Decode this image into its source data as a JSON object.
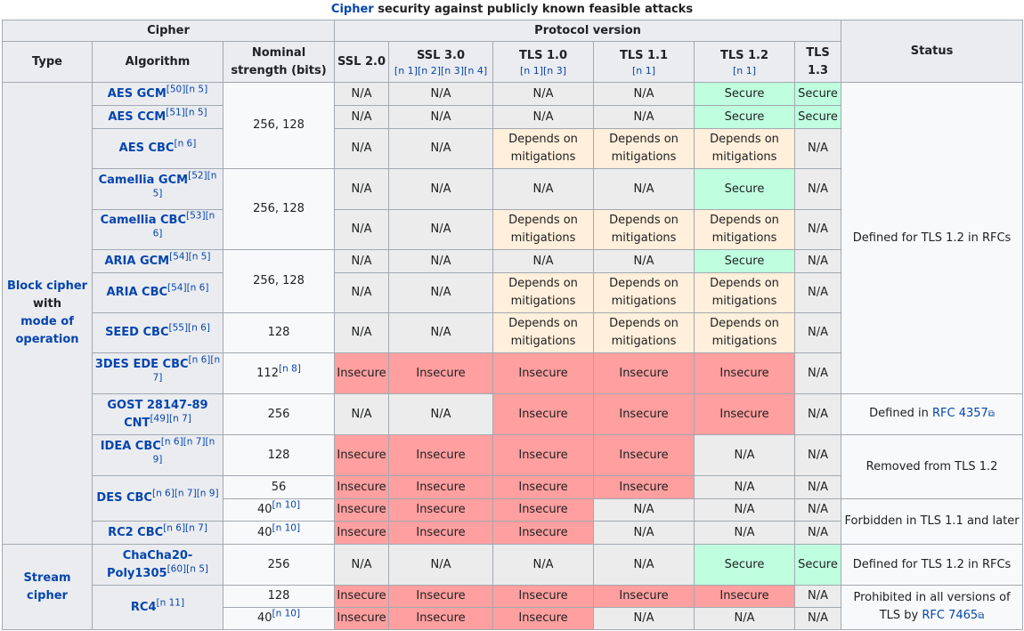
{
  "caption": {
    "link": "Cipher",
    "text": " security against publicly known feasible attacks"
  },
  "header": {
    "cipher": "Cipher",
    "protocol_version": "Protocol version",
    "type": "Type",
    "algorithm": "Algorithm",
    "strength": "Nominal strength (bits)",
    "status": "Status",
    "ssl20": "SSL 2.0",
    "ssl30": "SSL 3.0",
    "ssl30_refs": "[n 1][n 2][n 3][n 4]",
    "tls10": "TLS 1.0",
    "tls10_refs": "[n 1][n 3]",
    "tls11": "TLS 1.1",
    "tls11_refs": "[n 1]",
    "tls12": "TLS 1.2",
    "tls12_refs": "[n 1]",
    "tls13": "TLS 1.3"
  },
  "types": {
    "block_1": "Block cipher",
    "block_2": "with",
    "block_3": "mode of operation",
    "stream": "Stream cipher"
  },
  "algorithms": {
    "aes_gcm": "AES GCM",
    "aes_gcm_ref": "[50][n 5]",
    "aes_ccm": "AES CCM",
    "aes_ccm_ref": "[51][n 5]",
    "aes_cbc": "AES CBC",
    "aes_cbc_ref": "[n 6]",
    "cam_gcm": "Camellia GCM",
    "cam_gcm_ref": "[52][n 5]",
    "cam_cbc": "Camellia CBC",
    "cam_cbc_ref": "[53][n 6]",
    "aria_gcm": "ARIA GCM",
    "aria_gcm_ref": "[54][n 5]",
    "aria_cbc": "ARIA CBC",
    "aria_cbc_ref": "[54][n 6]",
    "seed_cbc": "SEED CBC",
    "seed_cbc_ref": "[55][n 6]",
    "des3": "3DES EDE CBC",
    "des3_ref": "[n 6][n 7]",
    "gost": "GOST 28147-89 CNT",
    "gost_ref": "[49][n 7]",
    "idea": "IDEA CBC",
    "idea_ref": "[n 6][n 7][n 9]",
    "des": "DES CBC",
    "des_ref": "[n 6][n 7][n 9]",
    "rc2": "RC2 CBC",
    "rc2_ref": "[n 6][n 7]",
    "chacha": "ChaCha20-Poly1305",
    "chacha_ref": "[60][n 5]",
    "rc4": "RC4",
    "rc4_ref": "[n 11]"
  },
  "strengths": {
    "aes": "256, 128",
    "cam": "256, 128",
    "aria": "256, 128",
    "seed": "128",
    "des3": "112",
    "des3_ref": "[n 8]",
    "gost": "256",
    "idea": "128",
    "des56": "56",
    "des40": "40",
    "des40_ref": "[n 10]",
    "rc2": "40",
    "rc2_ref": "[n 10]",
    "chacha": "256",
    "rc4_128": "128",
    "rc4_40": "40",
    "rc4_40_ref": "[n 10]"
  },
  "values": {
    "na": "N/A",
    "secure": "Secure",
    "insecure": "Insecure",
    "depends": "Depends on mitigations"
  },
  "status": {
    "rfc12": "Defined for TLS 1.2 in RFCs",
    "gost_prefix": "Defined in ",
    "gost_link": "RFC 4357",
    "removed": "Removed from TLS 1.2",
    "forbidden": "Forbidden in TLS 1.1 and later",
    "chacha": "Defined for TLS 1.2 in RFCs",
    "prohibited_prefix": "Prohibited in all versions of TLS by ",
    "prohibited_link": "RFC 7465"
  },
  "colors": {
    "na": "#ececec",
    "secure": "#bfffdf",
    "insecure": "#ff9f9f",
    "depends": "#ffefdb",
    "link": "#0645ad"
  }
}
